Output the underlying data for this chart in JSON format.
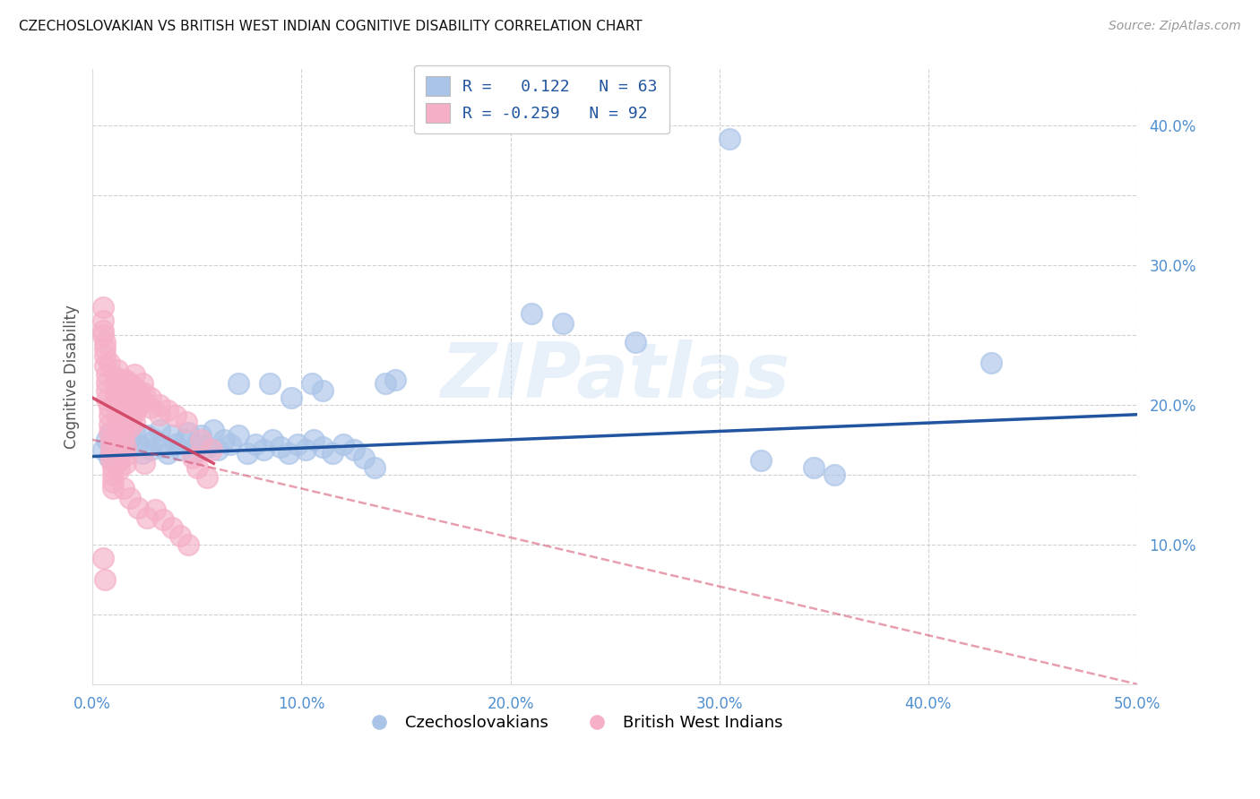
{
  "title": "CZECHOSLOVAKIAN VS BRITISH WEST INDIAN COGNITIVE DISABILITY CORRELATION CHART",
  "source": "Source: ZipAtlas.com",
  "ylabel": "Cognitive Disability",
  "y_ticks": [
    0.1,
    0.2,
    0.3,
    0.4
  ],
  "xlim": [
    0.0,
    0.5
  ],
  "ylim": [
    0.0,
    0.44
  ],
  "blue_R": "0.122",
  "blue_N": 63,
  "pink_R": "-0.259",
  "pink_N": 92,
  "blue_color": "#aac4e8",
  "pink_color": "#f5b0c8",
  "blue_line_color": "#2255a0",
  "pink_line_color": "#d04060",
  "watermark": "ZIPatlas",
  "legend_entries": [
    "Czechoslovakians",
    "British West Indians"
  ],
  "blue_points": [
    [
      0.005,
      0.168
    ],
    [
      0.007,
      0.175
    ],
    [
      0.008,
      0.162
    ],
    [
      0.009,
      0.18
    ],
    [
      0.01,
      0.172
    ],
    [
      0.012,
      0.178
    ],
    [
      0.013,
      0.165
    ],
    [
      0.015,
      0.182
    ],
    [
      0.016,
      0.17
    ],
    [
      0.018,
      0.175
    ],
    [
      0.02,
      0.18
    ],
    [
      0.022,
      0.172
    ],
    [
      0.024,
      0.165
    ],
    [
      0.026,
      0.178
    ],
    [
      0.028,
      0.168
    ],
    [
      0.03,
      0.175
    ],
    [
      0.032,
      0.182
    ],
    [
      0.034,
      0.17
    ],
    [
      0.036,
      0.165
    ],
    [
      0.038,
      0.178
    ],
    [
      0.04,
      0.172
    ],
    [
      0.042,
      0.168
    ],
    [
      0.044,
      0.175
    ],
    [
      0.046,
      0.18
    ],
    [
      0.048,
      0.165
    ],
    [
      0.05,
      0.172
    ],
    [
      0.052,
      0.178
    ],
    [
      0.055,
      0.17
    ],
    [
      0.058,
      0.182
    ],
    [
      0.06,
      0.168
    ],
    [
      0.063,
      0.175
    ],
    [
      0.066,
      0.172
    ],
    [
      0.07,
      0.178
    ],
    [
      0.074,
      0.165
    ],
    [
      0.078,
      0.172
    ],
    [
      0.082,
      0.168
    ],
    [
      0.086,
      0.175
    ],
    [
      0.09,
      0.17
    ],
    [
      0.094,
      0.165
    ],
    [
      0.098,
      0.172
    ],
    [
      0.102,
      0.168
    ],
    [
      0.106,
      0.175
    ],
    [
      0.11,
      0.17
    ],
    [
      0.115,
      0.165
    ],
    [
      0.12,
      0.172
    ],
    [
      0.125,
      0.168
    ],
    [
      0.13,
      0.162
    ],
    [
      0.135,
      0.155
    ],
    [
      0.07,
      0.215
    ],
    [
      0.085,
      0.215
    ],
    [
      0.095,
      0.205
    ],
    [
      0.105,
      0.215
    ],
    [
      0.11,
      0.21
    ],
    [
      0.14,
      0.215
    ],
    [
      0.145,
      0.218
    ],
    [
      0.21,
      0.265
    ],
    [
      0.225,
      0.258
    ],
    [
      0.26,
      0.245
    ],
    [
      0.305,
      0.39
    ],
    [
      0.32,
      0.16
    ],
    [
      0.345,
      0.155
    ],
    [
      0.355,
      0.15
    ],
    [
      0.43,
      0.23
    ]
  ],
  "pink_points": [
    [
      0.005,
      0.27
    ],
    [
      0.005,
      0.26
    ],
    [
      0.005,
      0.25
    ],
    [
      0.006,
      0.245
    ],
    [
      0.006,
      0.24
    ],
    [
      0.006,
      0.235
    ],
    [
      0.006,
      0.228
    ],
    [
      0.007,
      0.222
    ],
    [
      0.007,
      0.216
    ],
    [
      0.007,
      0.21
    ],
    [
      0.007,
      0.204
    ],
    [
      0.008,
      0.198
    ],
    [
      0.008,
      0.192
    ],
    [
      0.008,
      0.186
    ],
    [
      0.008,
      0.18
    ],
    [
      0.009,
      0.175
    ],
    [
      0.009,
      0.17
    ],
    [
      0.009,
      0.165
    ],
    [
      0.009,
      0.16
    ],
    [
      0.01,
      0.155
    ],
    [
      0.01,
      0.15
    ],
    [
      0.01,
      0.145
    ],
    [
      0.01,
      0.14
    ],
    [
      0.011,
      0.22
    ],
    [
      0.011,
      0.215
    ],
    [
      0.011,
      0.208
    ],
    [
      0.011,
      0.202
    ],
    [
      0.012,
      0.196
    ],
    [
      0.012,
      0.19
    ],
    [
      0.012,
      0.184
    ],
    [
      0.012,
      0.178
    ],
    [
      0.013,
      0.172
    ],
    [
      0.013,
      0.166
    ],
    [
      0.013,
      0.16
    ],
    [
      0.013,
      0.154
    ],
    [
      0.014,
      0.218
    ],
    [
      0.014,
      0.212
    ],
    [
      0.014,
      0.206
    ],
    [
      0.014,
      0.2
    ],
    [
      0.015,
      0.194
    ],
    [
      0.015,
      0.188
    ],
    [
      0.015,
      0.182
    ],
    [
      0.015,
      0.176
    ],
    [
      0.016,
      0.17
    ],
    [
      0.016,
      0.164
    ],
    [
      0.016,
      0.158
    ],
    [
      0.018,
      0.215
    ],
    [
      0.018,
      0.208
    ],
    [
      0.018,
      0.202
    ],
    [
      0.018,
      0.196
    ],
    [
      0.018,
      0.19
    ],
    [
      0.018,
      0.184
    ],
    [
      0.02,
      0.212
    ],
    [
      0.02,
      0.206
    ],
    [
      0.02,
      0.2
    ],
    [
      0.02,
      0.194
    ],
    [
      0.02,
      0.188
    ],
    [
      0.022,
      0.21
    ],
    [
      0.022,
      0.204
    ],
    [
      0.022,
      0.198
    ],
    [
      0.025,
      0.208
    ],
    [
      0.025,
      0.202
    ],
    [
      0.028,
      0.205
    ],
    [
      0.028,
      0.198
    ],
    [
      0.032,
      0.2
    ],
    [
      0.032,
      0.193
    ],
    [
      0.036,
      0.196
    ],
    [
      0.04,
      0.192
    ],
    [
      0.045,
      0.188
    ],
    [
      0.005,
      0.09
    ],
    [
      0.006,
      0.075
    ],
    [
      0.015,
      0.14
    ],
    [
      0.018,
      0.133
    ],
    [
      0.022,
      0.126
    ],
    [
      0.026,
      0.119
    ],
    [
      0.03,
      0.125
    ],
    [
      0.034,
      0.118
    ],
    [
      0.038,
      0.112
    ],
    [
      0.042,
      0.106
    ],
    [
      0.046,
      0.1
    ],
    [
      0.05,
      0.155
    ],
    [
      0.055,
      0.148
    ],
    [
      0.025,
      0.158
    ],
    [
      0.048,
      0.162
    ],
    [
      0.052,
      0.175
    ],
    [
      0.057,
      0.168
    ],
    [
      0.005,
      0.253
    ],
    [
      0.008,
      0.23
    ],
    [
      0.012,
      0.225
    ],
    [
      0.016,
      0.218
    ],
    [
      0.02,
      0.222
    ],
    [
      0.024,
      0.215
    ]
  ]
}
